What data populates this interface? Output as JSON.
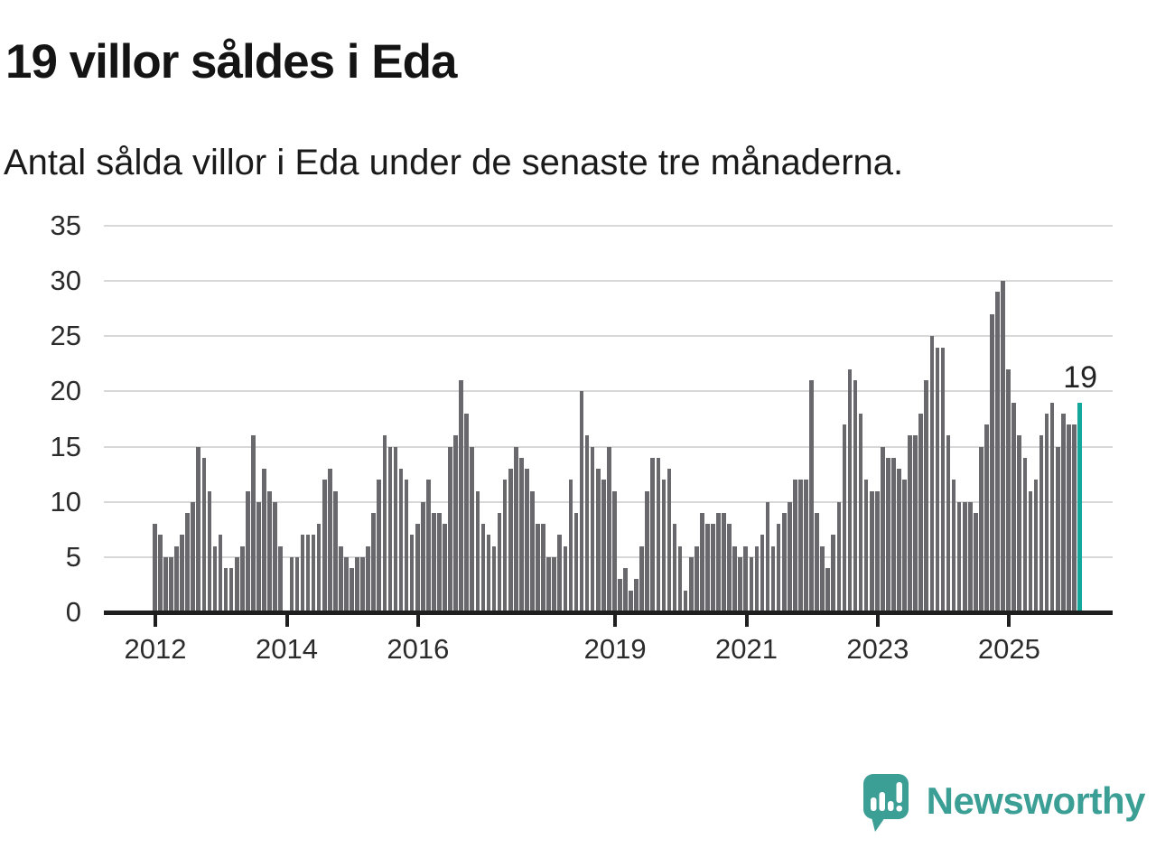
{
  "title": "19 villor såldes i Eda",
  "subtitle": "Antal sålda villor i Eda under de senaste tre månaderna.",
  "annotation": {
    "label": "19"
  },
  "branding": {
    "name": "Newsworthy",
    "icon": "speech-bubble-bar-chart-icon"
  },
  "colors": {
    "bar": "#69686d",
    "highlight": "#14a79c",
    "gridline": "#d8d8d8",
    "axis": "#1f1f1f",
    "text": "#141414",
    "brand_teal": "#3b9f95"
  },
  "chart_data": {
    "type": "bar",
    "title": "19 villor såldes i Eda",
    "subtitle": "Antal sålda villor i Eda under de senaste tre månaderna.",
    "ylabel": "",
    "xlabel": "",
    "ylim": [
      0,
      35
    ],
    "grid": true,
    "y_ticks": [
      0,
      5,
      10,
      15,
      20,
      25,
      30,
      35
    ],
    "x_tick_labels": [
      "2012",
      "2014",
      "2016",
      "2019",
      "2021",
      "2023",
      "2025"
    ],
    "x_tick_month_index": [
      0,
      24,
      48,
      84,
      108,
      132,
      156
    ],
    "x_start": "2012",
    "highlight_last_value": 19,
    "values": [
      8,
      7,
      5,
      5,
      6,
      7,
      9,
      10,
      15,
      14,
      11,
      6,
      7,
      4,
      4,
      5,
      6,
      11,
      16,
      10,
      13,
      11,
      10,
      6,
      0,
      5,
      5,
      7,
      7,
      7,
      8,
      12,
      13,
      11,
      6,
      5,
      4,
      5,
      5,
      6,
      9,
      12,
      16,
      15,
      15,
      13,
      12,
      7,
      8,
      10,
      12,
      9,
      9,
      8,
      15,
      16,
      21,
      18,
      15,
      11,
      8,
      7,
      6,
      9,
      12,
      13,
      15,
      14,
      13,
      11,
      8,
      8,
      5,
      5,
      7,
      6,
      12,
      9,
      20,
      16,
      15,
      13,
      12,
      15,
      11,
      3,
      4,
      2,
      3,
      6,
      11,
      14,
      14,
      12,
      13,
      8,
      6,
      2,
      5,
      6,
      9,
      8,
      8,
      9,
      9,
      8,
      6,
      5,
      6,
      5,
      6,
      7,
      10,
      6,
      8,
      9,
      10,
      12,
      12,
      12,
      21,
      9,
      6,
      4,
      7,
      10,
      17,
      22,
      21,
      18,
      12,
      11,
      11,
      15,
      14,
      14,
      13,
      12,
      16,
      16,
      18,
      21,
      25,
      24,
      24,
      16,
      12,
      10,
      10,
      10,
      9,
      15,
      17,
      27,
      29,
      30,
      22,
      19,
      16,
      14,
      11,
      12,
      16,
      18,
      19,
      15,
      18,
      17,
      17,
      19
    ]
  }
}
